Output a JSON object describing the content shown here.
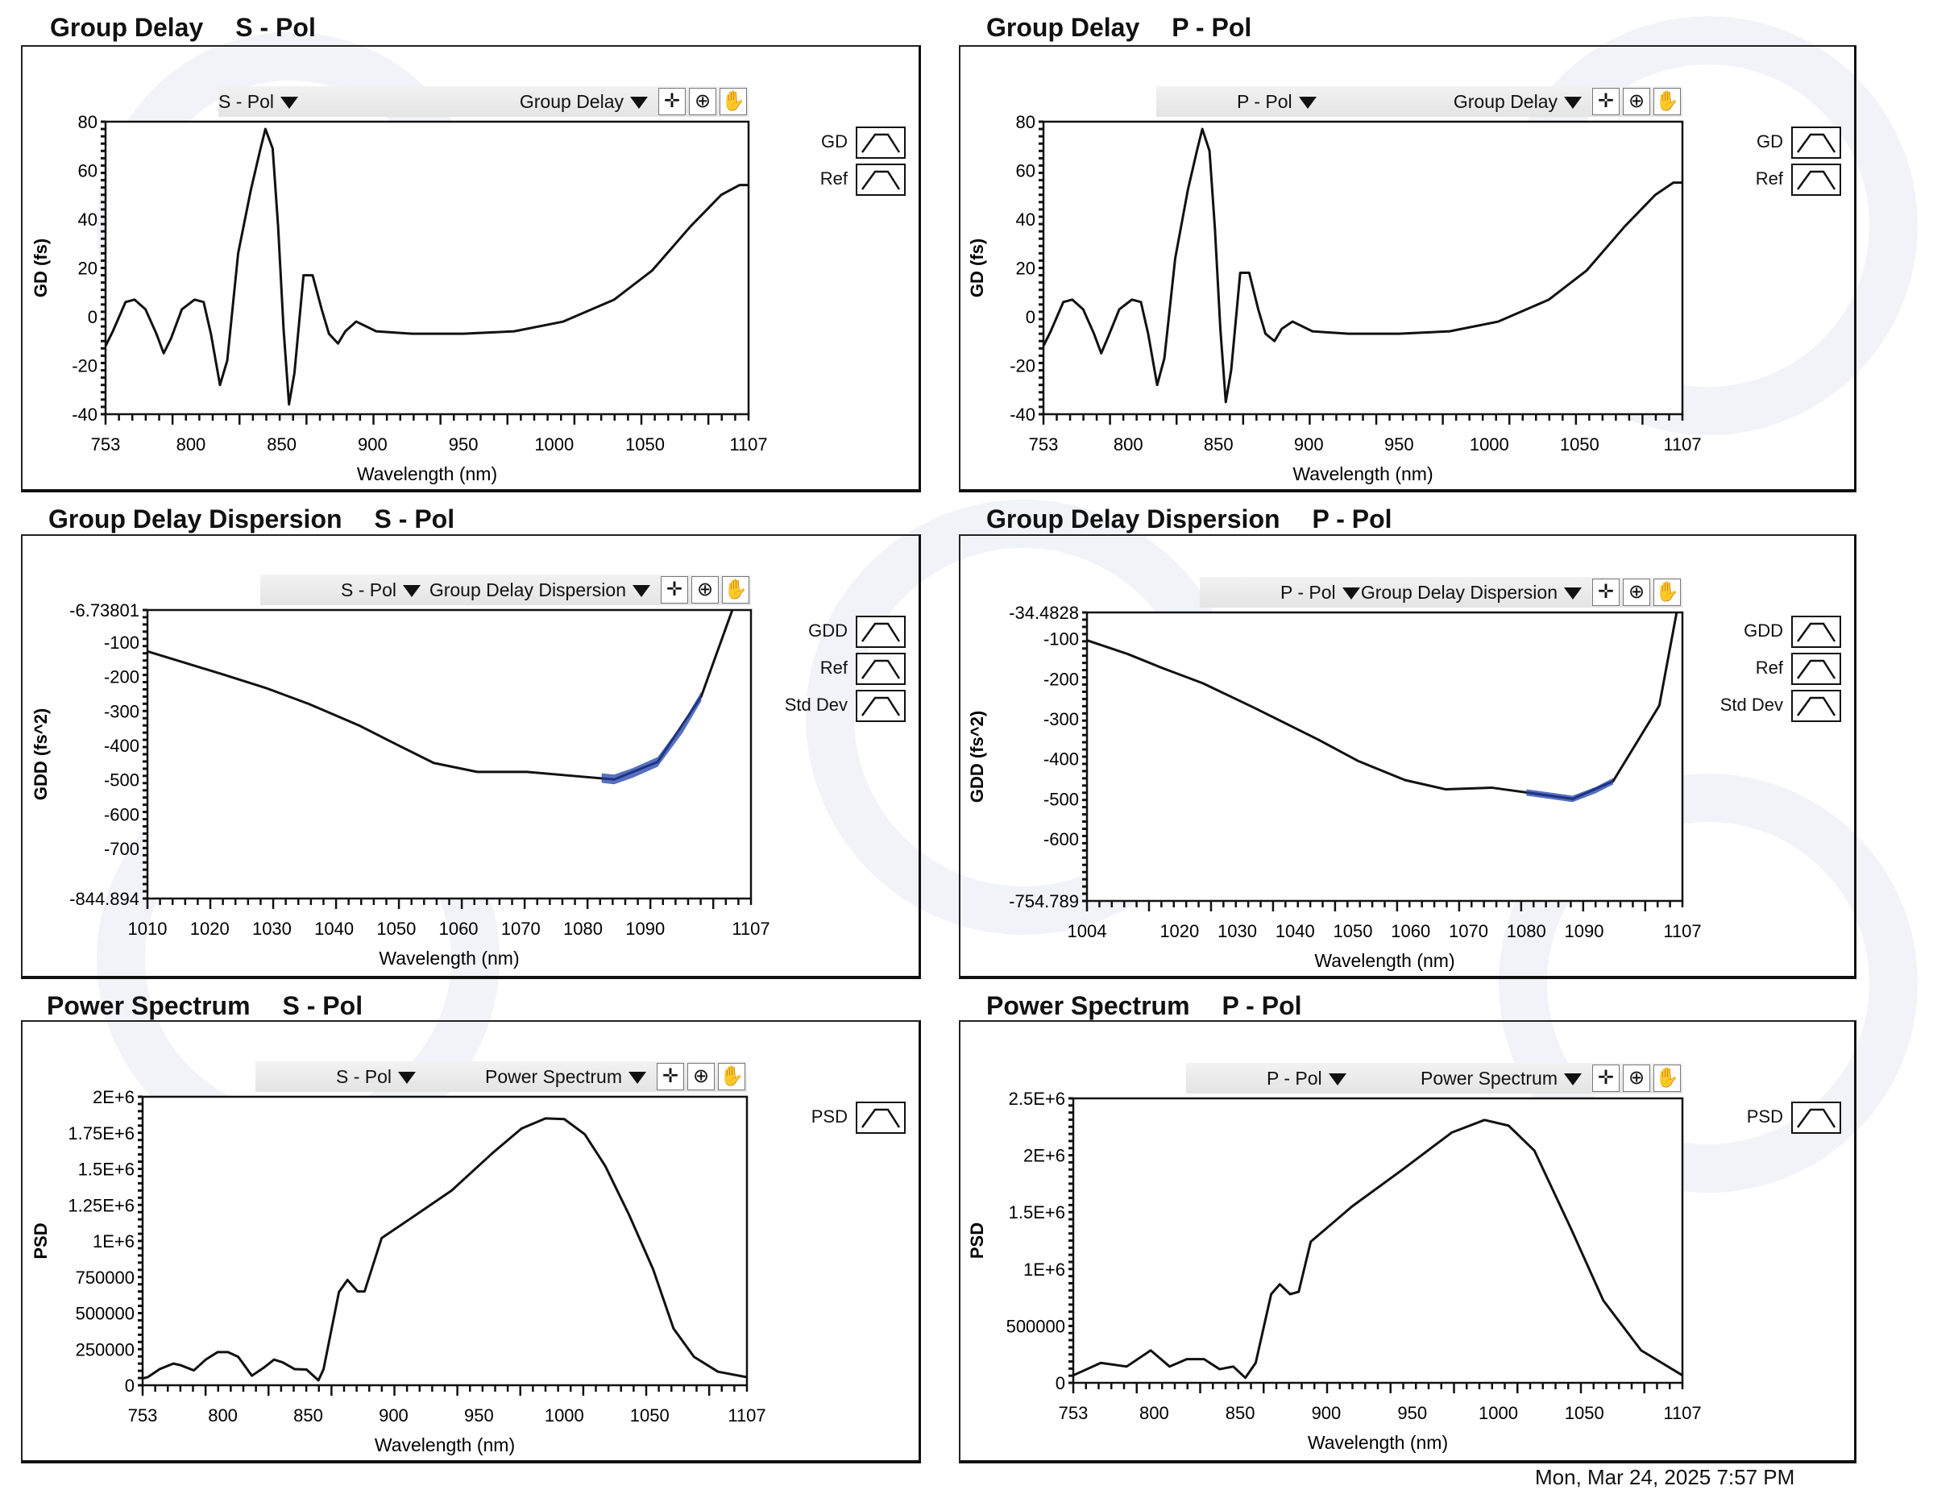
{
  "panels": [
    {
      "title": "Group Delay",
      "pol": "S - Pol",
      "toolbar": {
        "pol_select": "S - Pol",
        "measure_select": "Group Delay"
      },
      "legend": [
        "GD",
        "Ref"
      ]
    },
    {
      "title": "Group Delay",
      "pol": "P - Pol",
      "toolbar": {
        "pol_select": "P - Pol",
        "measure_select": "Group Delay"
      },
      "legend": [
        "GD",
        "Ref"
      ]
    },
    {
      "title": "Group Delay Dispersion",
      "pol": "S - Pol",
      "toolbar": {
        "pol_select": "S - Pol",
        "measure_select": "Group Delay Dispersion"
      },
      "legend": [
        "GDD",
        "Ref",
        "Std Dev"
      ]
    },
    {
      "title": "Group Delay Dispersion",
      "pol": "P - Pol",
      "toolbar": {
        "pol_select": "P - Pol",
        "measure_select": "Group Delay Dispersion"
      },
      "legend": [
        "GDD",
        "Ref",
        "Std Dev"
      ]
    },
    {
      "title": "Power Spectrum",
      "pol": "S - Pol",
      "toolbar": {
        "pol_select": "S - Pol",
        "measure_select": "Power Spectrum"
      },
      "legend": [
        "PSD"
      ]
    },
    {
      "title": "Power Spectrum",
      "pol": "P - Pol",
      "toolbar": {
        "pol_select": "P - Pol",
        "measure_select": "Power Spectrum"
      },
      "legend": [
        "PSD"
      ]
    }
  ],
  "toolbar_icons": [
    "cursor-crosshair-icon",
    "zoom-icon",
    "pan-hand-icon"
  ],
  "footer": {
    "timestamp": "Mon, Mar 24, 2025   7:57 PM"
  },
  "colors": {
    "line": "#111111",
    "std_dev": "#1f3fa8",
    "toolbar": "#e8e8e8"
  },
  "chart_data": [
    {
      "type": "line",
      "title": "Group Delay S - Pol",
      "xlabel": "Wavelength (nm)",
      "ylabel": "GD (fs)",
      "xlim": [
        753,
        1107
      ],
      "ylim": [
        -40,
        80
      ],
      "xticks": [
        "753",
        "800",
        "850",
        "900",
        "950",
        "1000",
        "1050",
        "1107"
      ],
      "yticks": [
        "80",
        "60",
        "40",
        "20",
        "0",
        "-20",
        "-40"
      ],
      "series": [
        {
          "name": "GD",
          "x": [
            753,
            757,
            764,
            769,
            775,
            781,
            785,
            789,
            795,
            802,
            807,
            811,
            816,
            820,
            826,
            833,
            838,
            841,
            845,
            848,
            851,
            854,
            857,
            862,
            867,
            872,
            876,
            881,
            885,
            891,
            902,
            922,
            950,
            978,
            1005,
            1033,
            1054,
            1075,
            1092,
            1102,
            1107
          ],
          "y": [
            -12,
            -6,
            6,
            7,
            3,
            -7,
            -15,
            -9,
            3,
            7,
            6,
            -7,
            -28,
            -18,
            26,
            52,
            68,
            77,
            69,
            37,
            -5,
            -36,
            -23,
            17,
            17,
            3,
            -7,
            -11,
            -6,
            -2,
            -6,
            -7,
            -7,
            -6,
            -2,
            7,
            19,
            37,
            50,
            54,
            54
          ]
        }
      ]
    },
    {
      "type": "line",
      "title": "Group Delay P - Pol",
      "xlabel": "Wavelength (nm)",
      "ylabel": "GD (fs)",
      "xlim": [
        753,
        1107
      ],
      "ylim": [
        -40,
        80
      ],
      "xticks": [
        "753",
        "800",
        "850",
        "900",
        "950",
        "1000",
        "1050",
        "1107"
      ],
      "yticks": [
        "80",
        "60",
        "40",
        "20",
        "0",
        "-20",
        "-40"
      ],
      "series": [
        {
          "name": "GD",
          "x": [
            753,
            757,
            764,
            769,
            775,
            781,
            785,
            789,
            795,
            802,
            807,
            811,
            816,
            820,
            826,
            833,
            838,
            841,
            845,
            848,
            851,
            854,
            857,
            862,
            867,
            872,
            876,
            881,
            885,
            891,
            902,
            922,
            950,
            978,
            1005,
            1033,
            1054,
            1075,
            1092,
            1102,
            1107
          ],
          "y": [
            -12,
            -6,
            6,
            7,
            3,
            -7,
            -15,
            -8,
            3,
            7,
            6,
            -7,
            -28,
            -17,
            24,
            52,
            68,
            77,
            68,
            36,
            -5,
            -35,
            -22,
            18,
            18,
            3,
            -7,
            -10,
            -5,
            -2,
            -6,
            -7,
            -7,
            -6,
            -2,
            7,
            19,
            37,
            50,
            55,
            55
          ]
        }
      ]
    },
    {
      "type": "line",
      "title": "Group Delay Dispersion S - Pol",
      "xlabel": "Wavelength (nm)",
      "ylabel": "GDD (fs^2)",
      "xlim": [
        1010,
        1107
      ],
      "ylim": [
        -844.894,
        -6.73801
      ],
      "xticks": [
        "1010",
        "1020",
        "1030",
        "1040",
        "1050",
        "1060",
        "1070",
        "1080",
        "1090",
        "1107"
      ],
      "yticks": [
        "-6.73801",
        "-100",
        "-200",
        "-300",
        "-400",
        "-500",
        "-600",
        "-700",
        "-844.894"
      ],
      "series": [
        {
          "name": "GDD",
          "x": [
            1010,
            1016,
            1022,
            1029,
            1036,
            1044,
            1050,
            1056,
            1063,
            1071,
            1078,
            1085,
            1092,
            1099,
            1104
          ],
          "y": [
            -127,
            -160,
            -193,
            -233,
            -280,
            -342,
            -397,
            -451,
            -477,
            -477,
            -488,
            -499,
            -448,
            -258,
            -6.7
          ]
        },
        {
          "name": "Std Dev",
          "x": [
            1083,
            1085,
            1088,
            1092,
            1096,
            1099
          ],
          "y": [
            -495,
            -499,
            -480,
            -448,
            -350,
            -258
          ],
          "spread": 14
        }
      ]
    },
    {
      "type": "line",
      "title": "Group Delay Dispersion P - Pol",
      "xlabel": "Wavelength (nm)",
      "ylabel": "GDD (fs^2)",
      "xlim": [
        1004,
        1107
      ],
      "ylim": [
        -754.789,
        -34.4828
      ],
      "xticks": [
        "1004",
        "1020",
        "1030",
        "1040",
        "1050",
        "1060",
        "1070",
        "1080",
        "1090",
        "1107"
      ],
      "yticks": [
        "-34.4828",
        "-100",
        "-200",
        "-300",
        "-400",
        "-500",
        "-600",
        "-754.789"
      ],
      "series": [
        {
          "name": "GDD",
          "x": [
            1004,
            1011,
            1017,
            1024,
            1033,
            1044,
            1051,
            1059,
            1066,
            1074,
            1082,
            1088,
            1095,
            1103,
            1106
          ],
          "y": [
            -104,
            -138,
            -173,
            -211,
            -273,
            -352,
            -406,
            -453,
            -476,
            -472,
            -488,
            -500,
            -456,
            -267,
            -34.5
          ]
        },
        {
          "name": "Std Dev",
          "x": [
            1080,
            1084,
            1088,
            1092,
            1095
          ],
          "y": [
            -484,
            -492,
            -500,
            -478,
            -456
          ],
          "spread": 8
        }
      ]
    },
    {
      "type": "line",
      "title": "Power Spectrum S - Pol",
      "xlabel": "Wavelength (nm)",
      "ylabel": "PSD",
      "xlim": [
        753,
        1107
      ],
      "ylim": [
        0,
        2000000
      ],
      "xticks": [
        "753",
        "800",
        "850",
        "900",
        "950",
        "1000",
        "1050",
        "1107"
      ],
      "yticks": [
        "2E+6",
        "1.75E+6",
        "1.5E+6",
        "1.25E+6",
        "1E+6",
        "750000",
        "500000",
        "250000",
        "0"
      ],
      "series": [
        {
          "name": "PSD",
          "x": [
            753,
            756,
            763,
            771,
            775,
            783,
            790,
            797,
            803,
            809,
            817,
            824,
            830,
            835,
            842,
            849,
            856,
            859,
            868,
            873,
            879,
            883,
            893,
            913,
            934,
            958,
            975,
            989,
            1000,
            1012,
            1024,
            1038,
            1052,
            1064,
            1076,
            1090,
            1107
          ],
          "y": [
            47000,
            56000,
            112000,
            150000,
            140000,
            103000,
            178000,
            230000,
            230000,
            197000,
            66000,
            122000,
            178000,
            159000,
            112000,
            109000,
            34000,
            112000,
            646000,
            730000,
            650000,
            650000,
            1020000,
            1180000,
            1350000,
            1610000,
            1780000,
            1850000,
            1845000,
            1740000,
            1520000,
            1180000,
            805000,
            393000,
            197000,
            94000,
            56000
          ]
        }
      ]
    },
    {
      "type": "line",
      "title": "Power Spectrum P - Pol",
      "xlabel": "Wavelength (nm)",
      "ylabel": "PSD",
      "xlim": [
        753,
        1107
      ],
      "ylim": [
        0,
        2500000
      ],
      "xticks": [
        "753",
        "800",
        "850",
        "900",
        "950",
        "1000",
        "1050",
        "1107"
      ],
      "yticks": [
        "2.5E+6",
        "2E+6",
        "1.5E+6",
        "1E+6",
        "500000",
        "0"
      ],
      "series": [
        {
          "name": "PSD",
          "x": [
            753,
            769,
            784,
            798,
            809,
            819,
            829,
            838,
            846,
            853,
            859,
            868,
            873,
            879,
            884,
            891,
            915,
            944,
            973,
            992,
            1006,
            1021,
            1043,
            1061,
            1083,
            1107
          ],
          "y": [
            66000,
            175000,
            143000,
            285000,
            143000,
            208000,
            208000,
            120000,
            143000,
            44000,
            175000,
            779000,
            866000,
            779000,
            800000,
            1240000,
            1550000,
            1870000,
            2200000,
            2310000,
            2260000,
            2040000,
            1330000,
            724000,
            285000,
            66000
          ]
        }
      ]
    }
  ]
}
